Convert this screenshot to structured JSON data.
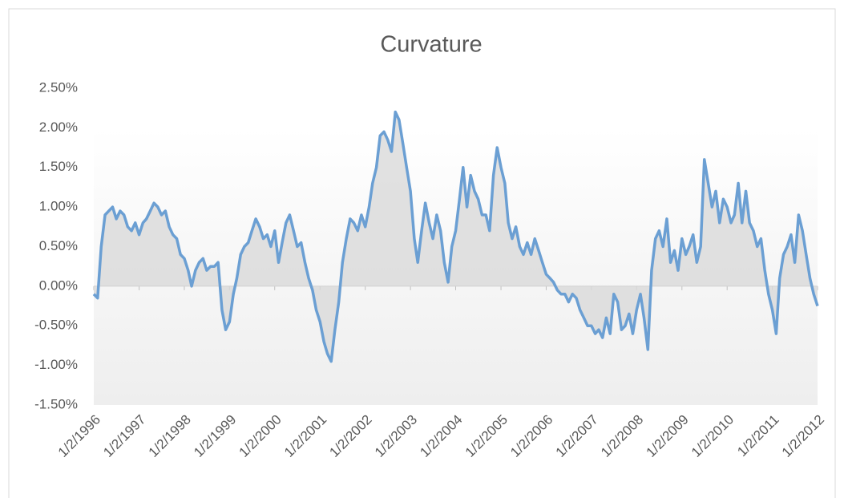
{
  "chart_data": {
    "type": "line",
    "title": "Curvature",
    "x": [
      "1996-01-02",
      "1996-02-02",
      "1996-03-02",
      "1996-04-02",
      "1996-05-02",
      "1996-06-02",
      "1996-07-02",
      "1996-08-02",
      "1996-09-02",
      "1996-10-02",
      "1996-11-02",
      "1996-12-02",
      "1997-01-02",
      "1997-02-02",
      "1997-03-02",
      "1997-04-02",
      "1997-05-02",
      "1997-06-02",
      "1997-07-02",
      "1997-08-02",
      "1997-09-02",
      "1997-10-02",
      "1997-11-02",
      "1997-12-02",
      "1998-01-02",
      "1998-02-02",
      "1998-03-02",
      "1998-04-02",
      "1998-05-02",
      "1998-06-02",
      "1998-07-02",
      "1998-08-02",
      "1998-09-02",
      "1998-10-02",
      "1998-11-02",
      "1998-12-02",
      "1999-01-02",
      "1999-02-02",
      "1999-03-02",
      "1999-04-02",
      "1999-05-02",
      "1999-06-02",
      "1999-07-02",
      "1999-08-02",
      "1999-09-02",
      "1999-10-02",
      "1999-11-02",
      "1999-12-02",
      "2000-01-02",
      "2000-02-02",
      "2000-03-02",
      "2000-04-02",
      "2000-05-02",
      "2000-06-02",
      "2000-07-02",
      "2000-08-02",
      "2000-09-02",
      "2000-10-02",
      "2000-11-02",
      "2000-12-02",
      "2001-01-02",
      "2001-02-02",
      "2001-03-02",
      "2001-04-02",
      "2001-05-02",
      "2001-06-02",
      "2001-07-02",
      "2001-08-02",
      "2001-09-02",
      "2001-10-02",
      "2001-11-02",
      "2001-12-02",
      "2002-01-02",
      "2002-02-02",
      "2002-03-02",
      "2002-04-02",
      "2002-05-02",
      "2002-06-02",
      "2002-07-02",
      "2002-08-02",
      "2002-09-02",
      "2002-10-02",
      "2002-11-02",
      "2002-12-02",
      "2003-01-02",
      "2003-02-02",
      "2003-03-02",
      "2003-04-02",
      "2003-05-02",
      "2003-06-02",
      "2003-07-02",
      "2003-08-02",
      "2003-09-02",
      "2003-10-02",
      "2003-11-02",
      "2003-12-02",
      "2004-01-02",
      "2004-02-02",
      "2004-03-02",
      "2004-04-02",
      "2004-05-02",
      "2004-06-02",
      "2004-07-02",
      "2004-08-02",
      "2004-09-02",
      "2004-10-02",
      "2004-11-02",
      "2004-12-02",
      "2005-01-02",
      "2005-02-02",
      "2005-03-02",
      "2005-04-02",
      "2005-05-02",
      "2005-06-02",
      "2005-07-02",
      "2005-08-02",
      "2005-09-02",
      "2005-10-02",
      "2005-11-02",
      "2005-12-02",
      "2006-01-02",
      "2006-02-02",
      "2006-03-02",
      "2006-04-02",
      "2006-05-02",
      "2006-06-02",
      "2006-07-02",
      "2006-08-02",
      "2006-09-02",
      "2006-10-02",
      "2006-11-02",
      "2006-12-02",
      "2007-01-02",
      "2007-02-02",
      "2007-03-02",
      "2007-04-02",
      "2007-05-02",
      "2007-06-02",
      "2007-07-02",
      "2007-08-02",
      "2007-09-02",
      "2007-10-02",
      "2007-11-02",
      "2007-12-02",
      "2008-01-02",
      "2008-02-02",
      "2008-03-02",
      "2008-04-02",
      "2008-05-02",
      "2008-06-02",
      "2008-07-02",
      "2008-08-02",
      "2008-09-02",
      "2008-10-02",
      "2008-11-02",
      "2008-12-02",
      "2009-01-02",
      "2009-02-02",
      "2009-03-02",
      "2009-04-02",
      "2009-05-02",
      "2009-06-02",
      "2009-07-02",
      "2009-08-02",
      "2009-09-02",
      "2009-10-02",
      "2009-11-02",
      "2009-12-02",
      "2010-01-02",
      "2010-02-02",
      "2010-03-02",
      "2010-04-02",
      "2010-05-02",
      "2010-06-02",
      "2010-07-02",
      "2010-08-02",
      "2010-09-02",
      "2010-10-02",
      "2010-11-02",
      "2010-12-02",
      "2011-01-02",
      "2011-02-02",
      "2011-03-02",
      "2011-04-02",
      "2011-05-02",
      "2011-06-02",
      "2011-07-02",
      "2011-08-02",
      "2011-09-02",
      "2011-10-02",
      "2011-11-02",
      "2011-12-02",
      "2012-01-02"
    ],
    "series": [
      {
        "color": "#6b9fd3",
        "values": [
          -0.1,
          -0.15,
          0.5,
          0.9,
          0.95,
          1.0,
          0.85,
          0.95,
          0.9,
          0.75,
          0.7,
          0.8,
          0.65,
          0.8,
          0.85,
          0.95,
          1.05,
          1.0,
          0.9,
          0.95,
          0.75,
          0.65,
          0.6,
          0.4,
          0.35,
          0.2,
          0.0,
          0.2,
          0.3,
          0.35,
          0.2,
          0.25,
          0.25,
          0.3,
          -0.3,
          -0.55,
          -0.45,
          -0.1,
          0.1,
          0.4,
          0.5,
          0.55,
          0.7,
          0.85,
          0.75,
          0.6,
          0.65,
          0.5,
          0.7,
          0.3,
          0.55,
          0.8,
          0.9,
          0.7,
          0.5,
          0.55,
          0.3,
          0.1,
          -0.05,
          -0.3,
          -0.45,
          -0.7,
          -0.85,
          -0.95,
          -0.55,
          -0.2,
          0.3,
          0.6,
          0.85,
          0.8,
          0.7,
          0.9,
          0.75,
          1.0,
          1.3,
          1.5,
          1.9,
          1.95,
          1.85,
          1.7,
          2.2,
          2.1,
          1.8,
          1.5,
          1.2,
          0.6,
          0.3,
          0.7,
          1.05,
          0.8,
          0.6,
          0.9,
          0.7,
          0.3,
          0.05,
          0.5,
          0.7,
          1.1,
          1.5,
          1.0,
          1.4,
          1.2,
          1.1,
          0.9,
          0.9,
          0.7,
          1.4,
          1.75,
          1.5,
          1.3,
          0.8,
          0.6,
          0.75,
          0.5,
          0.4,
          0.55,
          0.4,
          0.6,
          0.45,
          0.3,
          0.15,
          0.1,
          0.05,
          -0.05,
          -0.1,
          -0.1,
          -0.2,
          -0.1,
          -0.15,
          -0.3,
          -0.4,
          -0.5,
          -0.5,
          -0.6,
          -0.55,
          -0.65,
          -0.4,
          -0.6,
          -0.1,
          -0.2,
          -0.55,
          -0.5,
          -0.35,
          -0.6,
          -0.3,
          -0.1,
          -0.4,
          -0.8,
          0.2,
          0.6,
          0.7,
          0.5,
          0.85,
          0.3,
          0.45,
          0.2,
          0.6,
          0.4,
          0.5,
          0.65,
          0.3,
          0.5,
          1.6,
          1.3,
          1.0,
          1.2,
          0.8,
          1.1,
          1.0,
          0.8,
          0.9,
          1.3,
          0.8,
          1.2,
          0.8,
          0.7,
          0.5,
          0.6,
          0.2,
          -0.1,
          -0.3,
          -0.6,
          0.1,
          0.4,
          0.5,
          0.65,
          0.3,
          0.9,
          0.7,
          0.4,
          0.1,
          -0.1,
          -0.25
        ]
      }
    ],
    "xlim": [
      "1996-01-02",
      "2012-01-02"
    ],
    "xticks": [
      {
        "value": "1996-01-02",
        "label": "1/2/1996"
      },
      {
        "value": "1997-01-02",
        "label": "1/2/1997"
      },
      {
        "value": "1998-01-02",
        "label": "1/2/1998"
      },
      {
        "value": "1999-01-02",
        "label": "1/2/1999"
      },
      {
        "value": "2000-01-02",
        "label": "1/2/2000"
      },
      {
        "value": "2001-01-02",
        "label": "1/2/2001"
      },
      {
        "value": "2002-01-02",
        "label": "1/2/2002"
      },
      {
        "value": "2003-01-02",
        "label": "1/2/2003"
      },
      {
        "value": "2004-01-02",
        "label": "1/2/2004"
      },
      {
        "value": "2005-01-02",
        "label": "1/2/2005"
      },
      {
        "value": "2006-01-02",
        "label": "1/2/2006"
      },
      {
        "value": "2007-01-02",
        "label": "1/2/2007"
      },
      {
        "value": "2008-01-02",
        "label": "1/2/2008"
      },
      {
        "value": "2009-01-02",
        "label": "1/2/2009"
      },
      {
        "value": "2010-01-02",
        "label": "1/2/2010"
      },
      {
        "value": "2011-01-02",
        "label": "1/2/2011"
      },
      {
        "value": "2012-01-02",
        "label": "1/2/2012"
      }
    ],
    "ylim": [
      -1.5,
      2.5
    ],
    "yticks": [
      {
        "value": -1.5,
        "label": "-1.50%"
      },
      {
        "value": -1.0,
        "label": "-1.00%"
      },
      {
        "value": -0.5,
        "label": "-0.50%"
      },
      {
        "value": 0,
        "label": "0.00%"
      },
      {
        "value": 0.5,
        "label": "0.50%"
      },
      {
        "value": 1.0,
        "label": "1.00%"
      },
      {
        "value": 1.5,
        "label": "1.50%"
      },
      {
        "value": 2.0,
        "label": "2.00%"
      },
      {
        "value": 2.5,
        "label": "2.50%"
      }
    ],
    "grid": false
  }
}
